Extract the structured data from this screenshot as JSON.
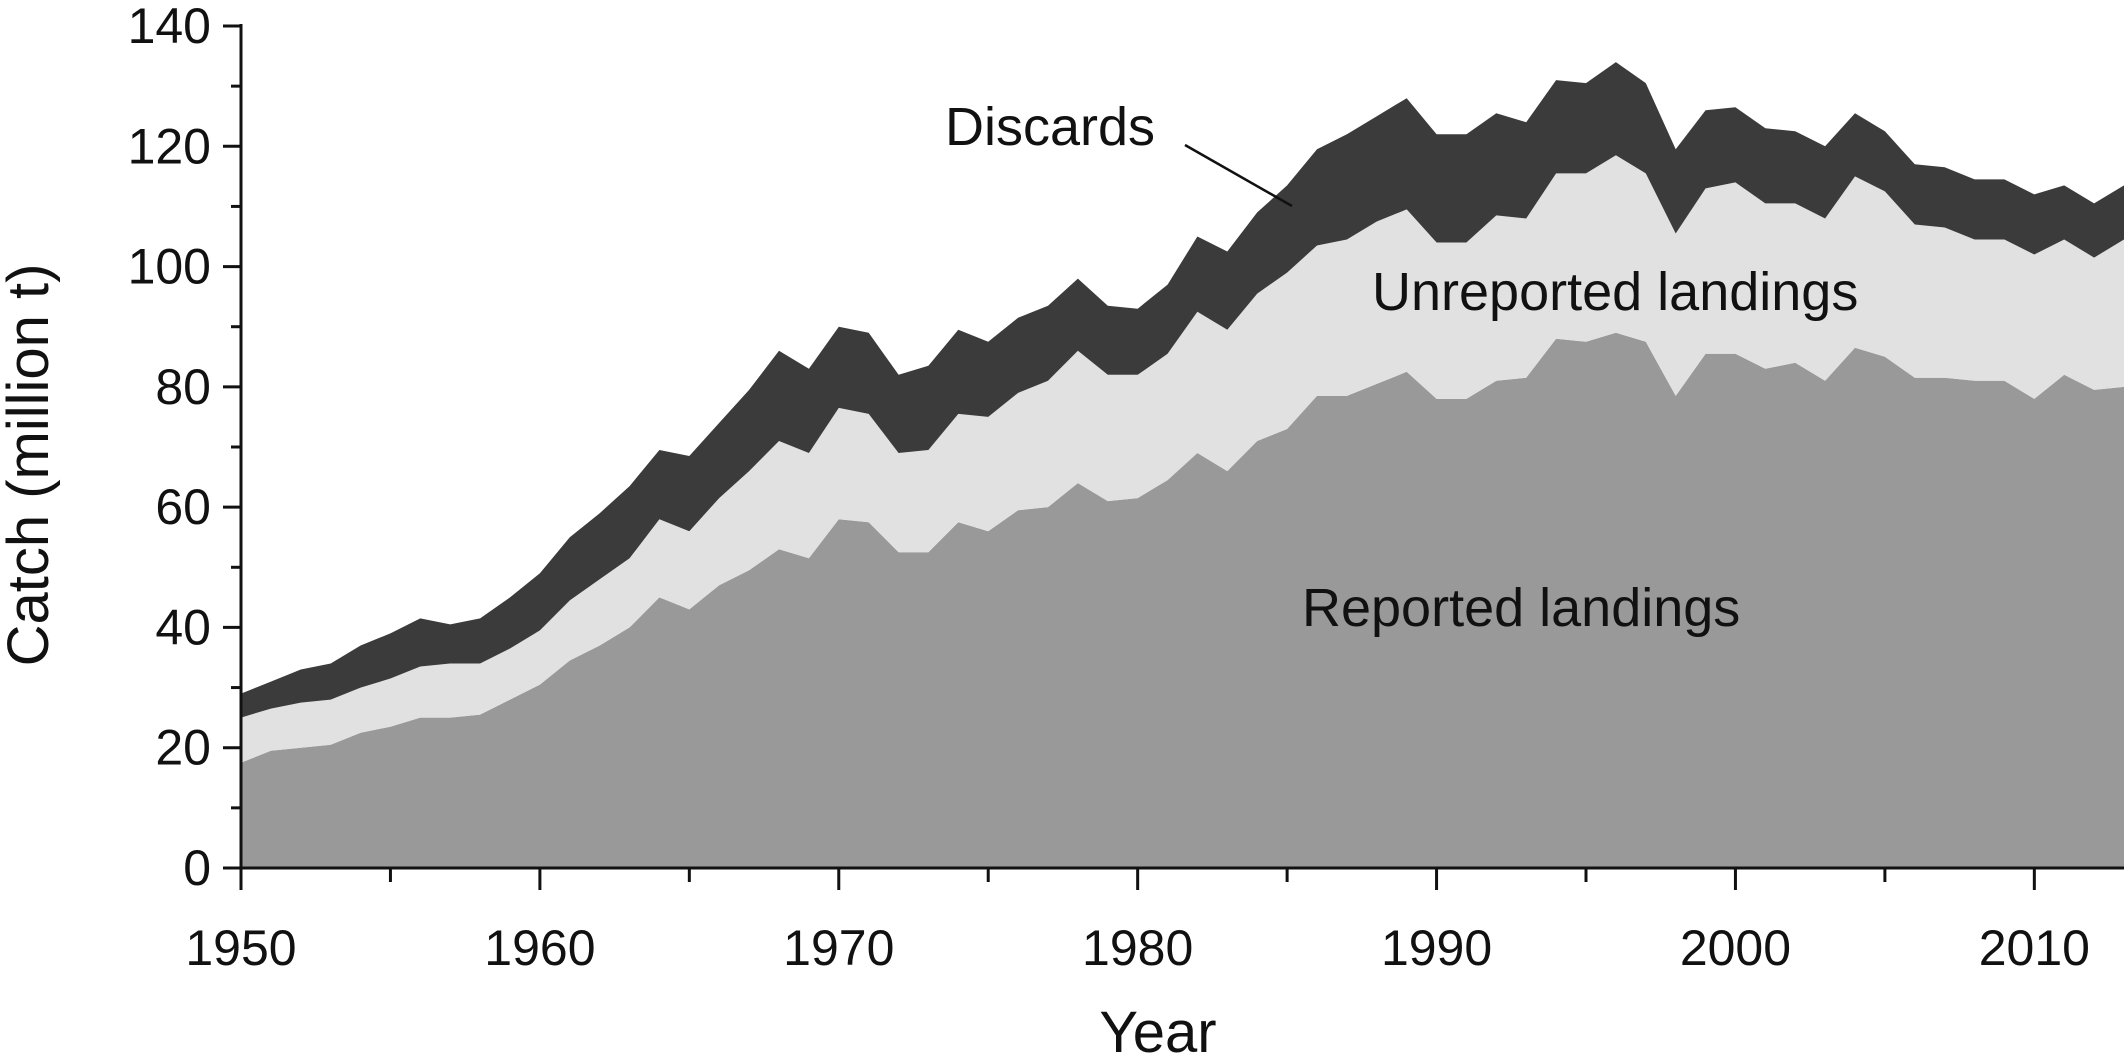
{
  "chart_data": {
    "type": "area",
    "stacked": true,
    "title": "",
    "xlabel": "Year",
    "ylabel": "Catch (million t)",
    "xlim": [
      1950,
      2013
    ],
    "ylim": [
      0,
      140
    ],
    "grid": false,
    "legend": "none",
    "x_ticks": [
      1950,
      1960,
      1970,
      1980,
      1990,
      2000,
      2010
    ],
    "y_ticks": [
      0,
      20,
      40,
      60,
      80,
      100,
      120,
      140
    ],
    "x": [
      1950,
      1951,
      1952,
      1953,
      1954,
      1955,
      1956,
      1957,
      1958,
      1959,
      1960,
      1961,
      1962,
      1963,
      1964,
      1965,
      1966,
      1967,
      1968,
      1969,
      1970,
      1971,
      1972,
      1973,
      1974,
      1975,
      1976,
      1977,
      1978,
      1979,
      1980,
      1981,
      1982,
      1983,
      1984,
      1985,
      1986,
      1987,
      1988,
      1989,
      1990,
      1991,
      1992,
      1993,
      1994,
      1995,
      1996,
      1997,
      1998,
      1999,
      2000,
      2001,
      2002,
      2003,
      2004,
      2005,
      2006,
      2007,
      2008,
      2009,
      2010,
      2011,
      2012,
      2013
    ],
    "series": [
      {
        "key": "reported",
        "color": "#999999",
        "values": [
          17.5,
          19.5,
          20,
          20.5,
          22.5,
          23.5,
          25,
          25,
          25.5,
          28,
          30.5,
          34.5,
          37,
          40,
          45,
          43,
          47,
          49.5,
          53,
          51.5,
          58,
          57.5,
          52.5,
          52.5,
          57.5,
          56,
          59.5,
          60,
          64,
          61,
          61.5,
          64.5,
          69,
          66,
          71,
          73,
          78.5,
          78.5,
          80.5,
          82.5,
          78,
          78,
          81,
          81.5,
          88,
          87.5,
          89,
          87.5,
          78.5,
          85.5,
          85.5,
          83,
          84,
          81,
          86.5,
          85,
          81.5,
          81.5,
          81,
          81,
          78,
          82,
          79.5,
          80
        ]
      },
      {
        "key": "unreported",
        "color": "#e1e1e1",
        "values": [
          7.5,
          7,
          7.5,
          7.5,
          7.5,
          8,
          8.5,
          9,
          8.5,
          8.5,
          9,
          10,
          11,
          11.5,
          13,
          13,
          14.5,
          16.5,
          18,
          17.5,
          18.5,
          18,
          16.5,
          17,
          18,
          19,
          19.5,
          21,
          22,
          21,
          20.5,
          21,
          23.5,
          23.5,
          24.5,
          26,
          25,
          26,
          27,
          27,
          26,
          26,
          27.5,
          26.5,
          27.5,
          28,
          29.5,
          28,
          27,
          27.5,
          28.5,
          27.5,
          26.5,
          27,
          28.5,
          27.5,
          25.5,
          25,
          23.5,
          23.5,
          24,
          22.5,
          22,
          24.5
        ]
      },
      {
        "key": "discards",
        "color": "#3b3b3b",
        "values": [
          4,
          4.5,
          5.5,
          6,
          7,
          7.5,
          8,
          6.5,
          7.5,
          8.5,
          9.5,
          10.5,
          11,
          12,
          11.5,
          12.5,
          12.5,
          13.5,
          15,
          14,
          13.5,
          13.5,
          13,
          14,
          14,
          12.5,
          12.5,
          12.5,
          12,
          11.5,
          11,
          11.5,
          12.5,
          13,
          13.5,
          14.5,
          16,
          17.5,
          17.5,
          18.5,
          18,
          18,
          17,
          16,
          15.5,
          15,
          15.5,
          15,
          14,
          13,
          12.5,
          12.5,
          12,
          12,
          10.5,
          10,
          10,
          10,
          10,
          10,
          10,
          9,
          9,
          9
        ]
      }
    ],
    "annotations": [
      {
        "text": "Discards"
      },
      {
        "text": "Unreported landings"
      },
      {
        "text": "Reported landings"
      }
    ]
  }
}
